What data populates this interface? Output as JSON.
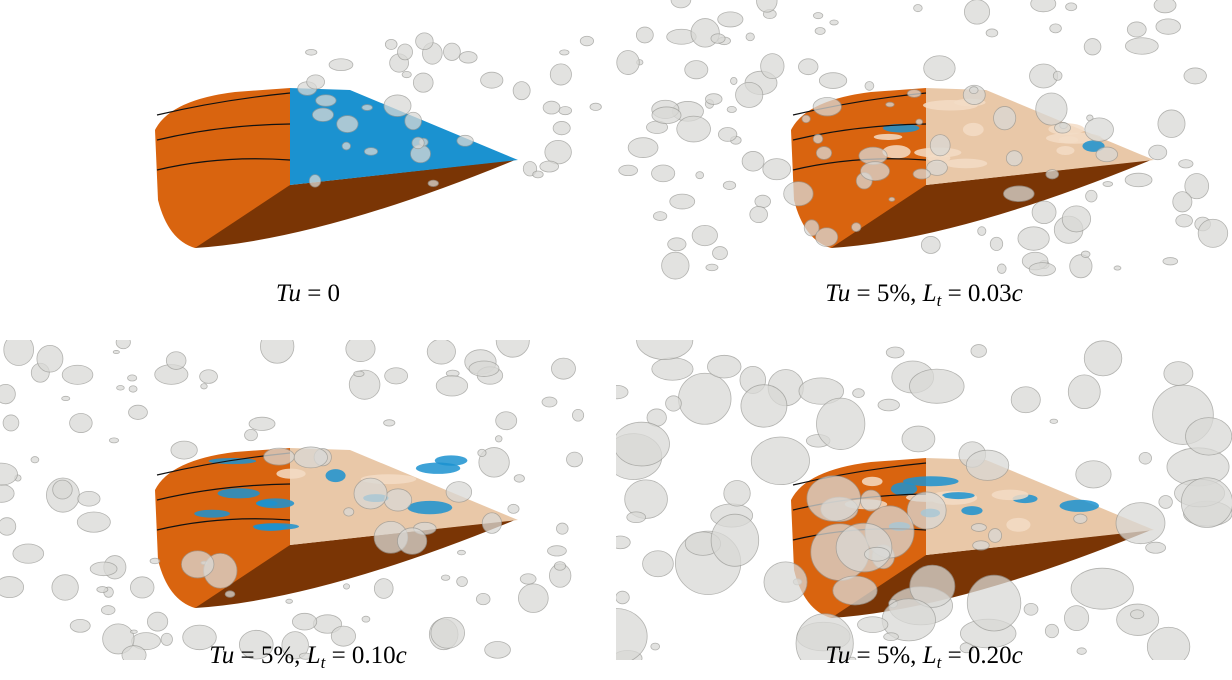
{
  "figure": {
    "panels": [
      {
        "caption": [
          {
            "text": "Tu",
            "style": "italic"
          },
          {
            "text": " = 0",
            "style": "normal"
          }
        ]
      },
      {
        "caption": [
          {
            "text": "Tu",
            "style": "italic"
          },
          {
            "text": " = 5%, ",
            "style": "normal"
          },
          {
            "text": "L",
            "style": "italic"
          },
          {
            "text": "t",
            "style": "sub"
          },
          {
            "text": " = 0.03",
            "style": "normal"
          },
          {
            "text": "c",
            "style": "italic"
          }
        ]
      },
      {
        "caption": [
          {
            "text": "Tu",
            "style": "italic"
          },
          {
            "text": " = 5%, ",
            "style": "normal"
          },
          {
            "text": "L",
            "style": "italic"
          },
          {
            "text": "t",
            "style": "sub"
          },
          {
            "text": " = 0.10",
            "style": "normal"
          },
          {
            "text": "c",
            "style": "italic"
          }
        ]
      },
      {
        "caption": [
          {
            "text": "Tu",
            "style": "italic"
          },
          {
            "text": " = 5%, ",
            "style": "normal"
          },
          {
            "text": "L",
            "style": "italic"
          },
          {
            "text": "t",
            "style": "sub"
          },
          {
            "text": " = 0.20",
            "style": "normal"
          },
          {
            "text": "c",
            "style": "italic"
          }
        ]
      }
    ]
  }
}
